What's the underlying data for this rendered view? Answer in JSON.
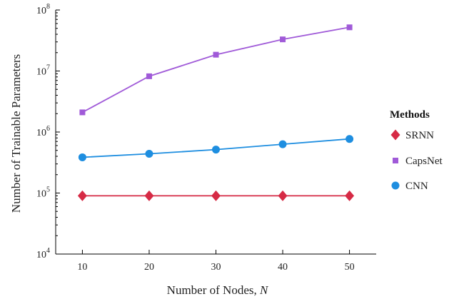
{
  "chart_data": {
    "type": "line",
    "xlabel": "Number of Nodes, ",
    "xlabel_var": "N",
    "ylabel": "Number of Trainable Parameters",
    "x": [
      10,
      20,
      30,
      40,
      50
    ],
    "y_scale": "log",
    "ylim": [
      10000,
      100000000
    ],
    "xlim": [
      6,
      54
    ],
    "y_ticks": [
      {
        "base": "10",
        "exp": "4",
        "value": 10000
      },
      {
        "base": "10",
        "exp": "5",
        "value": 100000
      },
      {
        "base": "10",
        "exp": "6",
        "value": 1000000
      },
      {
        "base": "10",
        "exp": "7",
        "value": 10000000
      },
      {
        "base": "10",
        "exp": "8",
        "value": 100000000
      }
    ],
    "x_ticks": [
      "10",
      "20",
      "30",
      "40",
      "50"
    ],
    "grid": false,
    "legend": {
      "title": "Methods",
      "placement": "right"
    },
    "series": [
      {
        "name": "SRNN",
        "color": "#d62a45",
        "marker": "diamond",
        "values": [
          90000,
          90000,
          90000,
          90000,
          90000
        ]
      },
      {
        "name": "CapsNet",
        "color": "#a05ad8",
        "marker": "square",
        "values": [
          2100000,
          8200000,
          18500000,
          33000000,
          52000000
        ]
      },
      {
        "name": "CNN",
        "color": "#1e8ee0",
        "marker": "circle",
        "values": [
          385000,
          440000,
          515000,
          630000,
          770000
        ]
      }
    ]
  }
}
